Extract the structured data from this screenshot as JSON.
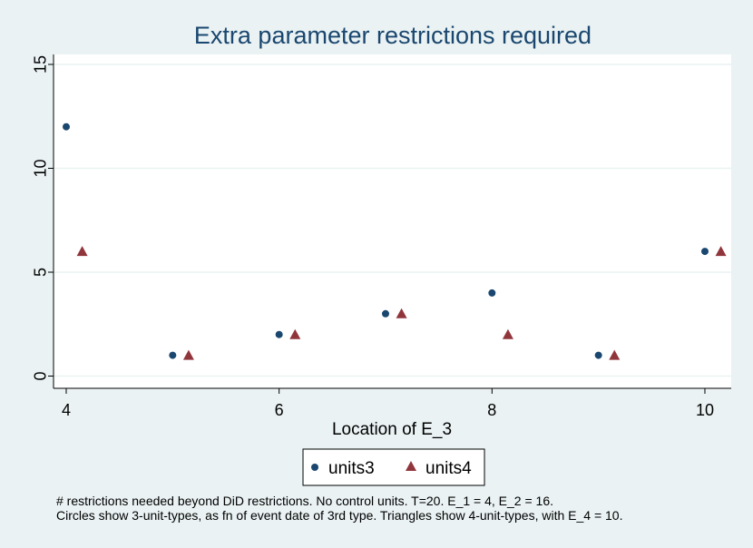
{
  "chart_data": {
    "type": "scatter",
    "title": "Extra parameter restrictions required",
    "xlabel": "Location of E_3",
    "ylabel": "",
    "xlim": [
      4,
      10.25
    ],
    "ylim": [
      -0.5,
      15.5
    ],
    "xticks": [
      4,
      6,
      8,
      10
    ],
    "yticks": [
      0,
      5,
      10,
      15
    ],
    "grid": true,
    "legend_position": "bottom-center",
    "series": [
      {
        "name": "units3",
        "marker": "circle",
        "color": "#1a476f",
        "points": [
          [
            4,
            12
          ],
          [
            5,
            1
          ],
          [
            6,
            2
          ],
          [
            7,
            3
          ],
          [
            8,
            4
          ],
          [
            9,
            1
          ],
          [
            10,
            6
          ]
        ]
      },
      {
        "name": "units4",
        "marker": "triangle",
        "color": "#90353b",
        "points": [
          [
            4.15,
            6
          ],
          [
            5.15,
            1
          ],
          [
            6.15,
            2
          ],
          [
            7.15,
            3
          ],
          [
            8.15,
            2
          ],
          [
            9.15,
            1
          ],
          [
            10.15,
            6
          ]
        ]
      }
    ],
    "notes": [
      "# restrictions needed beyond DiD restrictions. No control units. T=20. E_1 = 4, E_2 = 16.",
      "Circles show 3-unit-types, as fn of event date of 3rd type. Triangles show 4-unit-types, with E_4 = 10."
    ]
  }
}
